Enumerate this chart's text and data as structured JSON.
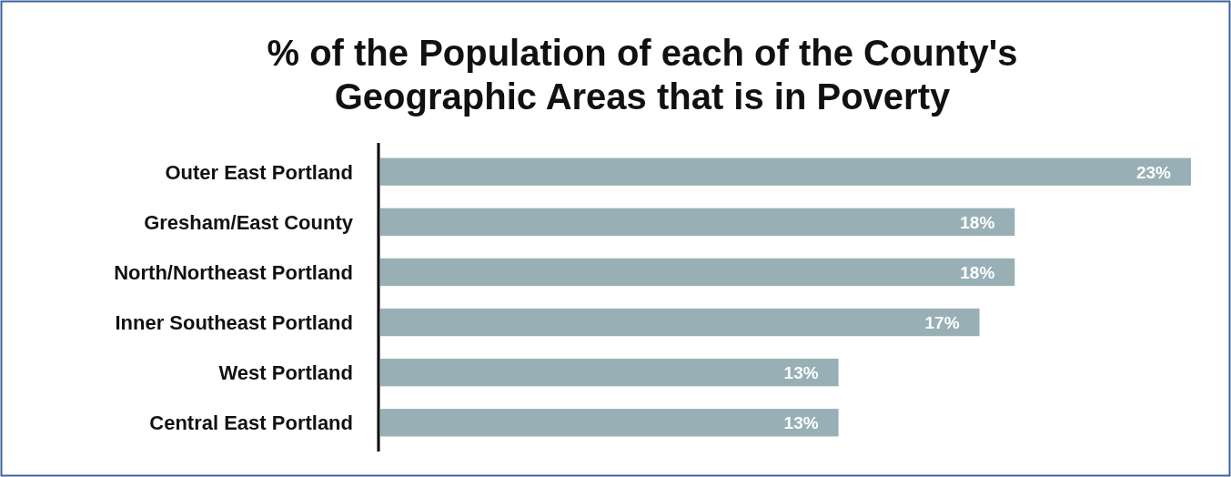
{
  "chart_data": {
    "type": "bar",
    "orientation": "horizontal",
    "title": "% of the Population of each of the County's\nGeographic Areas that is in Poverty",
    "categories": [
      "Outer East Portland",
      "Gresham/East County",
      "North/Northeast Portland",
      "Inner Southeast Portland",
      "West Portland",
      "Central East Portland"
    ],
    "values": [
      23,
      18,
      18,
      17,
      13,
      13
    ],
    "value_labels": [
      "23%",
      "18%",
      "18%",
      "17%",
      "13%",
      "13%"
    ],
    "color": "#98b0b5"
  }
}
